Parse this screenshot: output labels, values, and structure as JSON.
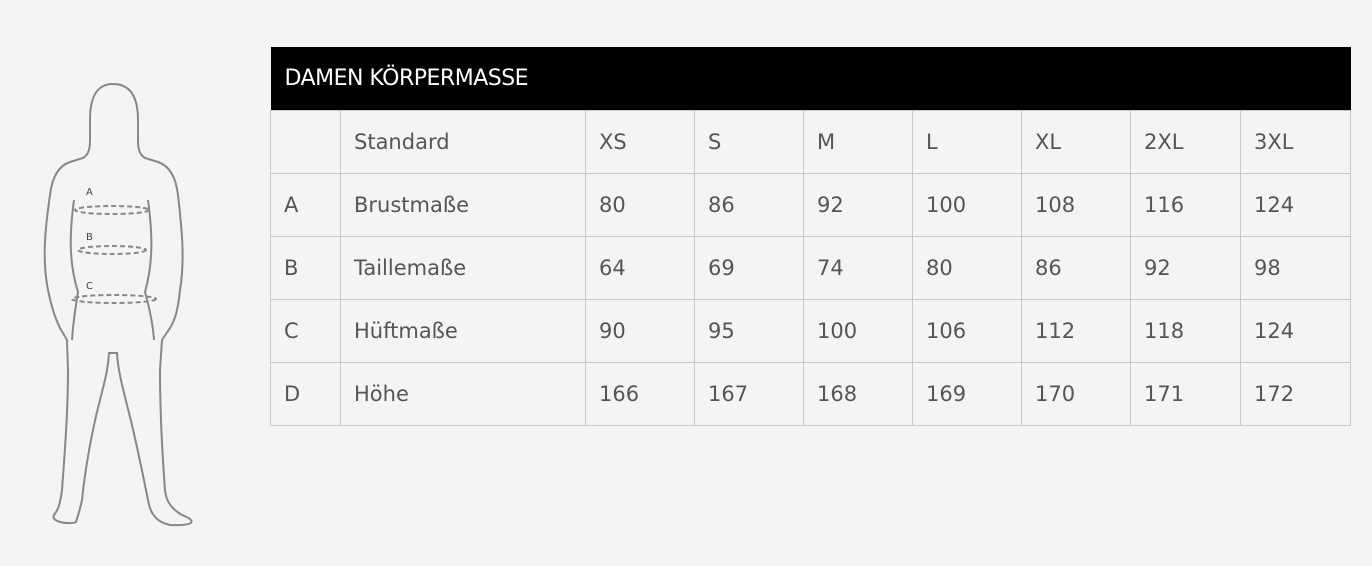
{
  "title": "DAMEN KÖRPERMASSE",
  "figure_labels": [
    "A",
    "B",
    "C"
  ],
  "header": [
    "",
    "Standard",
    "XS",
    "S",
    "M",
    "L",
    "XL",
    "2XL",
    "3XL"
  ],
  "rows": [
    [
      "A",
      "Brustmaße",
      "80",
      "86",
      "92",
      "100",
      "108",
      "116",
      "124"
    ],
    [
      "B",
      "Taillemaße",
      "64",
      "69",
      "74",
      "80",
      "86",
      "92",
      "98"
    ],
    [
      "C",
      "Hüftmaße",
      "90",
      "95",
      "100",
      "106",
      "112",
      "118",
      "124"
    ],
    [
      "D",
      "Höhe",
      "166",
      "167",
      "168",
      "169",
      "170",
      "171",
      "172"
    ]
  ]
}
